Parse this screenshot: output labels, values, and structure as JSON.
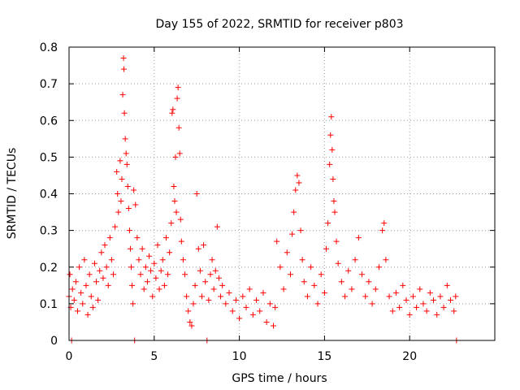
{
  "chart_data": {
    "type": "scatter",
    "title": "Day 155 of 2022, SRMTID for receiver p803",
    "xlabel": "GPS time / hours",
    "ylabel": "SRMTID / TECUs",
    "xlim": [
      0,
      25
    ],
    "ylim": [
      0,
      0.8
    ],
    "x_ticks": [
      0,
      5,
      10,
      15,
      20
    ],
    "x_tick_labels": [
      "0",
      "5",
      "10",
      "15",
      "20"
    ],
    "y_ticks": [
      0,
      0.1,
      0.2,
      0.3,
      0.4,
      0.5,
      0.6,
      0.7,
      0.8
    ],
    "y_tick_labels": [
      "0",
      "0.1",
      "0.2",
      "0.3",
      "0.4",
      "0.5",
      "0.6",
      "0.7",
      "0.8"
    ],
    "grid": true,
    "marker": "+",
    "color": "#ff0000",
    "series": [
      {
        "name": "SRMTID",
        "points": [
          [
            0.0,
            0.12
          ],
          [
            0.05,
            0.18
          ],
          [
            0.1,
            0.09
          ],
          [
            0.15,
            0.0
          ],
          [
            0.2,
            0.14
          ],
          [
            0.3,
            0.11
          ],
          [
            0.4,
            0.16
          ],
          [
            0.5,
            0.08
          ],
          [
            0.6,
            0.2
          ],
          [
            0.7,
            0.13
          ],
          [
            0.8,
            0.1
          ],
          [
            0.9,
            0.22
          ],
          [
            1.0,
            0.15
          ],
          [
            1.1,
            0.07
          ],
          [
            1.2,
            0.18
          ],
          [
            1.3,
            0.12
          ],
          [
            1.4,
            0.09
          ],
          [
            1.5,
            0.21
          ],
          [
            1.6,
            0.16
          ],
          [
            1.7,
            0.11
          ],
          [
            1.8,
            0.19
          ],
          [
            1.9,
            0.24
          ],
          [
            2.0,
            0.17
          ],
          [
            2.1,
            0.26
          ],
          [
            2.2,
            0.2
          ],
          [
            2.3,
            0.15
          ],
          [
            2.4,
            0.28
          ],
          [
            2.5,
            0.22
          ],
          [
            2.6,
            0.18
          ],
          [
            2.7,
            0.31
          ],
          [
            2.8,
            0.46
          ],
          [
            2.85,
            0.4
          ],
          [
            2.9,
            0.35
          ],
          [
            3.0,
            0.49
          ],
          [
            3.05,
            0.38
          ],
          [
            3.1,
            0.44
          ],
          [
            3.15,
            0.67
          ],
          [
            3.2,
            0.77
          ],
          [
            3.22,
            0.74
          ],
          [
            3.25,
            0.62
          ],
          [
            3.3,
            0.55
          ],
          [
            3.35,
            0.51
          ],
          [
            3.4,
            0.48
          ],
          [
            3.45,
            0.42
          ],
          [
            3.5,
            0.36
          ],
          [
            3.55,
            0.3
          ],
          [
            3.6,
            0.25
          ],
          [
            3.65,
            0.2
          ],
          [
            3.7,
            0.15
          ],
          [
            3.75,
            0.1
          ],
          [
            3.8,
            0.41
          ],
          [
            3.85,
            0.0
          ],
          [
            3.9,
            0.37
          ],
          [
            4.0,
            0.28
          ],
          [
            4.1,
            0.22
          ],
          [
            4.2,
            0.18
          ],
          [
            4.3,
            0.25
          ],
          [
            4.4,
            0.14
          ],
          [
            4.5,
            0.2
          ],
          [
            4.6,
            0.16
          ],
          [
            4.7,
            0.23
          ],
          [
            4.8,
            0.19
          ],
          [
            4.9,
            0.12
          ],
          [
            5.0,
            0.21
          ],
          [
            5.1,
            0.17
          ],
          [
            5.2,
            0.26
          ],
          [
            5.3,
            0.14
          ],
          [
            5.4,
            0.19
          ],
          [
            5.5,
            0.22
          ],
          [
            5.6,
            0.15
          ],
          [
            5.7,
            0.28
          ],
          [
            5.8,
            0.18
          ],
          [
            5.9,
            0.24
          ],
          [
            6.0,
            0.32
          ],
          [
            6.05,
            0.62
          ],
          [
            6.1,
            0.63
          ],
          [
            6.15,
            0.42
          ],
          [
            6.2,
            0.38
          ],
          [
            6.25,
            0.5
          ],
          [
            6.3,
            0.35
          ],
          [
            6.35,
            0.66
          ],
          [
            6.4,
            0.69
          ],
          [
            6.45,
            0.58
          ],
          [
            6.5,
            0.51
          ],
          [
            6.55,
            0.33
          ],
          [
            6.6,
            0.27
          ],
          [
            6.7,
            0.22
          ],
          [
            6.8,
            0.18
          ],
          [
            6.9,
            0.12
          ],
          [
            7.0,
            0.08
          ],
          [
            7.1,
            0.05
          ],
          [
            7.2,
            0.04
          ],
          [
            7.3,
            0.1
          ],
          [
            7.4,
            0.15
          ],
          [
            7.5,
            0.4
          ],
          [
            7.6,
            0.25
          ],
          [
            7.7,
            0.19
          ],
          [
            7.8,
            0.12
          ],
          [
            7.9,
            0.26
          ],
          [
            8.0,
            0.16
          ],
          [
            8.1,
            0.0
          ],
          [
            8.2,
            0.11
          ],
          [
            8.3,
            0.18
          ],
          [
            8.4,
            0.22
          ],
          [
            8.5,
            0.14
          ],
          [
            8.6,
            0.19
          ],
          [
            8.7,
            0.31
          ],
          [
            8.8,
            0.17
          ],
          [
            8.9,
            0.12
          ],
          [
            9.0,
            0.15
          ],
          [
            9.2,
            0.1
          ],
          [
            9.4,
            0.13
          ],
          [
            9.6,
            0.08
          ],
          [
            9.8,
            0.11
          ],
          [
            10.0,
            0.06
          ],
          [
            10.2,
            0.12
          ],
          [
            10.4,
            0.09
          ],
          [
            10.6,
            0.14
          ],
          [
            10.8,
            0.07
          ],
          [
            11.0,
            0.11
          ],
          [
            11.2,
            0.08
          ],
          [
            11.4,
            0.13
          ],
          [
            11.6,
            0.05
          ],
          [
            11.8,
            0.1
          ],
          [
            12.0,
            0.04
          ],
          [
            12.1,
            0.09
          ],
          [
            12.2,
            0.27
          ],
          [
            12.4,
            0.2
          ],
          [
            12.6,
            0.14
          ],
          [
            12.8,
            0.24
          ],
          [
            13.0,
            0.18
          ],
          [
            13.1,
            0.29
          ],
          [
            13.2,
            0.35
          ],
          [
            13.3,
            0.41
          ],
          [
            13.4,
            0.45
          ],
          [
            13.5,
            0.43
          ],
          [
            13.6,
            0.3
          ],
          [
            13.7,
            0.22
          ],
          [
            13.8,
            0.16
          ],
          [
            14.0,
            0.12
          ],
          [
            14.2,
            0.2
          ],
          [
            14.4,
            0.15
          ],
          [
            14.6,
            0.1
          ],
          [
            14.8,
            0.18
          ],
          [
            15.0,
            0.13
          ],
          [
            15.1,
            0.25
          ],
          [
            15.2,
            0.32
          ],
          [
            15.3,
            0.48
          ],
          [
            15.35,
            0.56
          ],
          [
            15.4,
            0.61
          ],
          [
            15.45,
            0.52
          ],
          [
            15.5,
            0.44
          ],
          [
            15.55,
            0.38
          ],
          [
            15.6,
            0.35
          ],
          [
            15.7,
            0.27
          ],
          [
            15.8,
            0.21
          ],
          [
            16.0,
            0.16
          ],
          [
            16.2,
            0.12
          ],
          [
            16.4,
            0.19
          ],
          [
            16.6,
            0.14
          ],
          [
            16.8,
            0.22
          ],
          [
            17.0,
            0.28
          ],
          [
            17.2,
            0.18
          ],
          [
            17.4,
            0.12
          ],
          [
            17.6,
            0.16
          ],
          [
            17.8,
            0.1
          ],
          [
            18.0,
            0.14
          ],
          [
            18.2,
            0.2
          ],
          [
            18.4,
            0.3
          ],
          [
            18.5,
            0.32
          ],
          [
            18.6,
            0.22
          ],
          [
            18.8,
            0.12
          ],
          [
            19.0,
            0.08
          ],
          [
            19.2,
            0.13
          ],
          [
            19.4,
            0.09
          ],
          [
            19.6,
            0.15
          ],
          [
            19.8,
            0.11
          ],
          [
            20.0,
            0.07
          ],
          [
            20.2,
            0.12
          ],
          [
            20.4,
            0.09
          ],
          [
            20.6,
            0.14
          ],
          [
            20.8,
            0.1
          ],
          [
            21.0,
            0.08
          ],
          [
            21.2,
            0.13
          ],
          [
            21.4,
            0.11
          ],
          [
            21.6,
            0.07
          ],
          [
            21.8,
            0.12
          ],
          [
            22.0,
            0.09
          ],
          [
            22.2,
            0.15
          ],
          [
            22.4,
            0.11
          ],
          [
            22.6,
            0.08
          ],
          [
            22.7,
            0.12
          ],
          [
            22.75,
            0.0
          ]
        ]
      }
    ]
  }
}
